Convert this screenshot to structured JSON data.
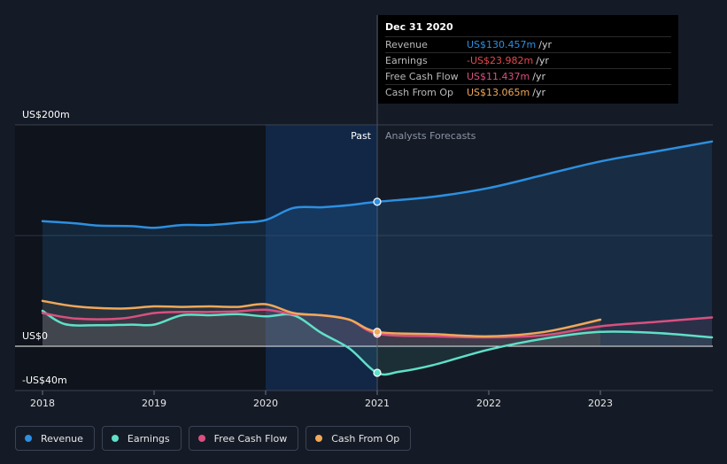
{
  "chart_data": {
    "type": "line",
    "y_axis": {
      "top_label": "US$200m",
      "zero_label": "US$0",
      "bottom_label": "-US$40m",
      "ylim": [
        -40,
        200
      ]
    },
    "x_ticks": [
      "2018",
      "2019",
      "2020",
      "2021",
      "2022",
      "2023"
    ],
    "regions": {
      "past_label": "Past",
      "forecast_label": "Analysts Forecasts",
      "divider_x": 2021.0
    },
    "series": [
      {
        "name": "Revenue",
        "color": "#2d8fe0",
        "points": [
          [
            2018.0,
            113
          ],
          [
            2018.3,
            111
          ],
          [
            2018.5,
            109
          ],
          [
            2018.8,
            108.5
          ],
          [
            2019.0,
            107
          ],
          [
            2019.25,
            109.5
          ],
          [
            2019.5,
            109.5
          ],
          [
            2019.75,
            111.5
          ],
          [
            2020.0,
            114
          ],
          [
            2020.25,
            125
          ],
          [
            2020.5,
            125.5
          ],
          [
            2020.75,
            127.5
          ],
          [
            2021.0,
            130.5
          ],
          [
            2021.5,
            135
          ],
          [
            2022.0,
            143
          ],
          [
            2022.5,
            155
          ],
          [
            2023.0,
            167
          ],
          [
            2023.5,
            176
          ],
          [
            2024.0,
            185
          ]
        ]
      },
      {
        "name": "Earnings",
        "color": "#5fe0c8",
        "points": [
          [
            2018.0,
            32
          ],
          [
            2018.2,
            20
          ],
          [
            2018.5,
            19
          ],
          [
            2018.8,
            19.5
          ],
          [
            2019.0,
            19.5
          ],
          [
            2019.25,
            28
          ],
          [
            2019.5,
            28
          ],
          [
            2019.75,
            29
          ],
          [
            2020.0,
            27
          ],
          [
            2020.25,
            28
          ],
          [
            2020.5,
            12
          ],
          [
            2020.75,
            -2
          ],
          [
            2021.0,
            -24
          ],
          [
            2021.2,
            -23
          ],
          [
            2021.5,
            -17
          ],
          [
            2022.0,
            -3
          ],
          [
            2022.5,
            7
          ],
          [
            2023.0,
            13
          ],
          [
            2023.5,
            12
          ],
          [
            2024.0,
            8
          ]
        ]
      },
      {
        "name": "Free Cash Flow",
        "color": "#d9507f",
        "points": [
          [
            2018.0,
            30
          ],
          [
            2018.3,
            25
          ],
          [
            2018.7,
            25
          ],
          [
            2019.0,
            30
          ],
          [
            2019.25,
            31
          ],
          [
            2019.5,
            31
          ],
          [
            2019.75,
            31.5
          ],
          [
            2020.0,
            33
          ],
          [
            2020.25,
            29
          ],
          [
            2020.5,
            28
          ],
          [
            2020.75,
            24
          ],
          [
            2021.0,
            11.4
          ],
          [
            2021.5,
            9
          ],
          [
            2022.0,
            8
          ],
          [
            2022.5,
            10
          ],
          [
            2023.0,
            18
          ],
          [
            2023.5,
            22
          ],
          [
            2024.0,
            26
          ]
        ]
      },
      {
        "name": "Cash From Op",
        "color": "#f0a85a",
        "points": [
          [
            2018.0,
            41
          ],
          [
            2018.3,
            36
          ],
          [
            2018.7,
            34
          ],
          [
            2019.0,
            36
          ],
          [
            2019.25,
            35.5
          ],
          [
            2019.5,
            36
          ],
          [
            2019.75,
            35.5
          ],
          [
            2020.0,
            38
          ],
          [
            2020.25,
            30
          ],
          [
            2020.5,
            28
          ],
          [
            2020.75,
            24
          ],
          [
            2021.0,
            13
          ],
          [
            2021.5,
            11
          ],
          [
            2022.0,
            9
          ],
          [
            2022.5,
            13
          ],
          [
            2023.0,
            24
          ]
        ]
      }
    ]
  },
  "tooltip": {
    "date": "Dec 31 2020",
    "rows": [
      {
        "name": "Revenue",
        "value": "US$130.457m",
        "unit": "/yr",
        "color": "#2d8fe0"
      },
      {
        "name": "Earnings",
        "value": "-US$23.982m",
        "unit": "/yr",
        "color": "#e8484c"
      },
      {
        "name": "Free Cash Flow",
        "value": "US$11.437m",
        "unit": "/yr",
        "color": "#d9507f"
      },
      {
        "name": "Cash From Op",
        "value": "US$13.065m",
        "unit": "/yr",
        "color": "#f0a85a"
      }
    ]
  },
  "legend": [
    {
      "label": "Revenue",
      "color": "#2d8fe0"
    },
    {
      "label": "Earnings",
      "color": "#5fe0c8"
    },
    {
      "label": "Free Cash Flow",
      "color": "#d9507f"
    },
    {
      "label": "Cash From Op",
      "color": "#f0a85a"
    }
  ]
}
